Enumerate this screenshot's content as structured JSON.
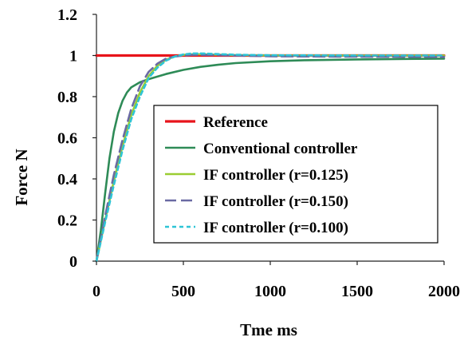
{
  "chart_data": {
    "type": "line",
    "title": "",
    "xlabel": "Tme ms",
    "ylabel": "Force N",
    "xlim": [
      0,
      2000
    ],
    "ylim": [
      0,
      1.2
    ],
    "x_ticks": [
      0,
      500,
      1000,
      1500,
      2000
    ],
    "y_ticks": [
      0,
      0.2,
      0.4,
      0.6,
      0.8,
      1,
      1.2
    ],
    "x_tick_labels": [
      "0",
      "500",
      "1000",
      "1500",
      "2000"
    ],
    "y_tick_labels": [
      "0",
      "0.2",
      "0.4",
      "0.6",
      "0.8",
      "1",
      "1.2"
    ],
    "grid": false,
    "legend_position": "bottom-right",
    "series": [
      {
        "name": "Reference",
        "color": "#e8141b",
        "dash": "solid",
        "x": [
          0,
          2000
        ],
        "y": [
          1,
          1
        ]
      },
      {
        "name": "Conventional controller",
        "color": "#2e8b57",
        "dash": "solid",
        "x": [
          0,
          25,
          50,
          75,
          100,
          125,
          150,
          175,
          200,
          250,
          300,
          400,
          500,
          600,
          700,
          800,
          1000,
          1200,
          1500,
          2000
        ],
        "y": [
          0,
          0.15,
          0.33,
          0.5,
          0.63,
          0.72,
          0.78,
          0.82,
          0.845,
          0.87,
          0.885,
          0.91,
          0.93,
          0.945,
          0.955,
          0.963,
          0.972,
          0.977,
          0.981,
          0.985
        ]
      },
      {
        "name": "IF controller (r=0.125)",
        "color": "#9acd32",
        "dash": "solid",
        "x": [
          0,
          50,
          100,
          150,
          200,
          250,
          300,
          350,
          400,
          450,
          500,
          550,
          600,
          700,
          800,
          1000,
          1500,
          2000
        ],
        "y": [
          0,
          0.2,
          0.39,
          0.56,
          0.71,
          0.82,
          0.9,
          0.95,
          0.98,
          0.995,
          1.003,
          1.006,
          1.006,
          1.004,
          1.002,
          1.0,
          1.0,
          1.0
        ]
      },
      {
        "name": "IF controller (r=0.150)",
        "color": "#6a6aa3",
        "dash": "long-dash",
        "x": [
          0,
          50,
          100,
          150,
          200,
          250,
          300,
          350,
          400,
          450,
          500,
          550,
          600,
          700,
          800,
          1000,
          1500,
          2000
        ],
        "y": [
          0,
          0.22,
          0.42,
          0.59,
          0.74,
          0.85,
          0.92,
          0.96,
          0.985,
          0.995,
          1.0,
          1.003,
          1.003,
          1.002,
          1.0,
          0.996,
          0.994,
          0.993
        ]
      },
      {
        "name": "IF controller (r=0.100)",
        "color": "#2ec4d6",
        "dash": "short-dash",
        "x": [
          0,
          50,
          100,
          150,
          200,
          250,
          300,
          350,
          400,
          450,
          500,
          550,
          600,
          700,
          800,
          1000,
          1500,
          2000
        ],
        "y": [
          0,
          0.19,
          0.37,
          0.54,
          0.69,
          0.8,
          0.89,
          0.94,
          0.975,
          0.995,
          1.005,
          1.01,
          1.01,
          1.007,
          1.004,
          1.001,
          1.0,
          1.0
        ]
      }
    ]
  }
}
